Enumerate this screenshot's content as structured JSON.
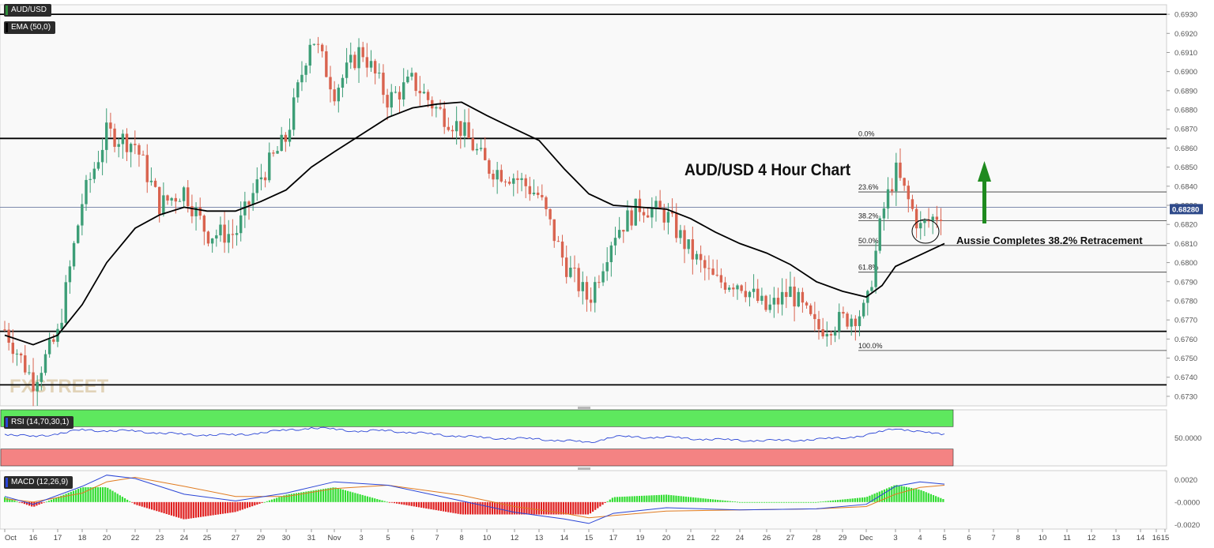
{
  "panels": {
    "symbol": "AUD/USD",
    "ema_label": "EMA (50,0)",
    "rsi_label": "RSI (14,70,30,1)",
    "macd_label": "MACD (12,26,9)"
  },
  "watermark": "FXSTREET",
  "chart_data": [
    {
      "type": "candlestick",
      "title": "AUD/USD 4 Hour Chart",
      "annotation": "Aussie Completes 38.2% Retracement",
      "ylim": [
        0.6725,
        0.6935
      ],
      "yticks": [
        "0.6930",
        "0.6920",
        "0.6910",
        "0.6900",
        "0.6890",
        "0.6880",
        "0.6870",
        "0.6860",
        "0.6850",
        "0.6840",
        "0.6830",
        "0.6820",
        "0.6810",
        "0.6800",
        "0.6790",
        "0.6780",
        "0.6770",
        "0.6760",
        "0.6750",
        "0.6740",
        "0.6730"
      ],
      "last_price": "0.68280",
      "x_labels": [
        "Oct",
        "16",
        "17",
        "18",
        "20",
        "22",
        "23",
        "24",
        "25",
        "27",
        "29",
        "30",
        "31",
        "Nov",
        "3",
        "5",
        "6",
        "7",
        "8",
        "10",
        "12",
        "13",
        "14",
        "15",
        "17",
        "19",
        "20",
        "21",
        "22",
        "24",
        "26",
        "27",
        "28",
        "29",
        "Dec",
        "3",
        "4",
        "5",
        "6",
        "7",
        "8",
        "10",
        "11",
        "12",
        "13",
        "14",
        "15",
        "16"
      ],
      "path_key": [
        {
          "date": "Oct 15",
          "price": 0.6765
        },
        {
          "date": "Oct 16",
          "price": 0.6738
        },
        {
          "date": "Oct 17",
          "price": 0.6762
        },
        {
          "date": "Oct 18",
          "price": 0.6832
        },
        {
          "date": "Oct 20",
          "price": 0.6868
        },
        {
          "date": "Oct 22",
          "price": 0.6862
        },
        {
          "date": "Oct 23",
          "price": 0.683
        },
        {
          "date": "Oct 24",
          "price": 0.6838
        },
        {
          "date": "Oct 25",
          "price": 0.6815
        },
        {
          "date": "Oct 27",
          "price": 0.6815
        },
        {
          "date": "Oct 29",
          "price": 0.6845
        },
        {
          "date": "Oct 30",
          "price": 0.6865
        },
        {
          "date": "Oct 31",
          "price": 0.692
        },
        {
          "date": "Nov 1",
          "price": 0.689
        },
        {
          "date": "Nov 3",
          "price": 0.6912
        },
        {
          "date": "Nov 5",
          "price": 0.6885
        },
        {
          "date": "Nov 6",
          "price": 0.6895
        },
        {
          "date": "Nov 7",
          "price": 0.688
        },
        {
          "date": "Nov 8",
          "price": 0.687
        },
        {
          "date": "Nov 10",
          "price": 0.685
        },
        {
          "date": "Nov 12",
          "price": 0.6845
        },
        {
          "date": "Nov 13",
          "price": 0.6835
        },
        {
          "date": "Nov 14",
          "price": 0.68
        },
        {
          "date": "Nov 15",
          "price": 0.678
        },
        {
          "date": "Nov 17",
          "price": 0.6815
        },
        {
          "date": "Nov 19",
          "price": 0.683
        },
        {
          "date": "Nov 20",
          "price": 0.6825
        },
        {
          "date": "Nov 21",
          "price": 0.6805
        },
        {
          "date": "Nov 22",
          "price": 0.679
        },
        {
          "date": "Nov 24",
          "price": 0.679
        },
        {
          "date": "Nov 26",
          "price": 0.6775
        },
        {
          "date": "Nov 27",
          "price": 0.6785
        },
        {
          "date": "Nov 28",
          "price": 0.6765
        },
        {
          "date": "Nov 29",
          "price": 0.677
        },
        {
          "date": "Dec 1",
          "price": 0.6775
        },
        {
          "date": "Dec 2",
          "price": 0.6825
        },
        {
          "date": "Dec 3",
          "price": 0.6848
        },
        {
          "date": "Dec 4",
          "price": 0.6818
        },
        {
          "date": "Dec 5",
          "price": 0.6828
        }
      ],
      "ema_path": [
        {
          "date": "Oct 15",
          "value": 0.6762
        },
        {
          "date": "Oct 16",
          "value": 0.6757
        },
        {
          "date": "Oct 17",
          "value": 0.6762
        },
        {
          "date": "Oct 18",
          "value": 0.6778
        },
        {
          "date": "Oct 20",
          "value": 0.68
        },
        {
          "date": "Oct 22",
          "value": 0.6818
        },
        {
          "date": "Oct 23",
          "value": 0.6825
        },
        {
          "date": "Oct 24",
          "value": 0.6829
        },
        {
          "date": "Oct 25",
          "value": 0.6827
        },
        {
          "date": "Oct 27",
          "value": 0.6827
        },
        {
          "date": "Oct 29",
          "value": 0.6832
        },
        {
          "date": "Oct 30",
          "value": 0.6838
        },
        {
          "date": "Oct 31",
          "value": 0.685
        },
        {
          "date": "Nov 1",
          "value": 0.6858
        },
        {
          "date": "Nov 3",
          "value": 0.6867
        },
        {
          "date": "Nov 5",
          "value": 0.6876
        },
        {
          "date": "Nov 6",
          "value": 0.6881
        },
        {
          "date": "Nov 7",
          "value": 0.6883
        },
        {
          "date": "Nov 8",
          "value": 0.6884
        },
        {
          "date": "Nov 10",
          "value": 0.6877
        },
        {
          "date": "Nov 12",
          "value": 0.687
        },
        {
          "date": "Nov 13",
          "value": 0.6864
        },
        {
          "date": "Nov 14",
          "value": 0.6849
        },
        {
          "date": "Nov 15",
          "value": 0.6836
        },
        {
          "date": "Nov 17",
          "value": 0.683
        },
        {
          "date": "Nov 19",
          "value": 0.6829
        },
        {
          "date": "Nov 20",
          "value": 0.6828
        },
        {
          "date": "Nov 21",
          "value": 0.6823
        },
        {
          "date": "Nov 22",
          "value": 0.6816
        },
        {
          "date": "Nov 24",
          "value": 0.681
        },
        {
          "date": "Nov 26",
          "value": 0.6805
        },
        {
          "date": "Nov 27",
          "value": 0.6799
        },
        {
          "date": "Nov 28",
          "value": 0.679
        },
        {
          "date": "Nov 29",
          "value": 0.6785
        },
        {
          "date": "Dec 1",
          "value": 0.6782
        },
        {
          "date": "Dec 2",
          "value": 0.6788
        },
        {
          "date": "Dec 3",
          "value": 0.6798
        },
        {
          "date": "Dec 4",
          "value": 0.6804
        },
        {
          "date": "Dec 5",
          "value": 0.681
        }
      ],
      "horizontal_levels": [
        0.693,
        0.6865,
        0.6829,
        0.6764,
        0.6736
      ],
      "fibonacci": [
        {
          "label": "0.0%",
          "price": 0.6865
        },
        {
          "label": "23.6%",
          "price": 0.6837
        },
        {
          "label": "38.2%",
          "price": 0.6822
        },
        {
          "label": "50.0%",
          "price": 0.6809
        },
        {
          "label": "61.8%",
          "price": 0.6795
        },
        {
          "label": "100.0%",
          "price": 0.6754
        }
      ]
    },
    {
      "type": "line",
      "indicator": "RSI",
      "ylim": [
        0,
        100
      ],
      "yticks": [
        "50.0000"
      ],
      "overbought": 70,
      "oversold": 30,
      "path_key": [
        {
          "date": "Oct 15",
          "value": 57
        },
        {
          "date": "Oct 16",
          "value": 52
        },
        {
          "date": "Oct 18",
          "value": 64
        },
        {
          "date": "Oct 22",
          "value": 62
        },
        {
          "date": "Oct 24",
          "value": 56
        },
        {
          "date": "Oct 27",
          "value": 55
        },
        {
          "date": "Oct 31",
          "value": 68
        },
        {
          "date": "Nov 3",
          "value": 62
        },
        {
          "date": "Nov 5",
          "value": 63
        },
        {
          "date": "Nov 7",
          "value": 56
        },
        {
          "date": "Nov 10",
          "value": 50
        },
        {
          "date": "Nov 13",
          "value": 48
        },
        {
          "date": "Nov 15",
          "value": 42
        },
        {
          "date": "Nov 17",
          "value": 52
        },
        {
          "date": "Nov 20",
          "value": 51
        },
        {
          "date": "Nov 22",
          "value": 47
        },
        {
          "date": "Nov 26",
          "value": 45
        },
        {
          "date": "Nov 28",
          "value": 47
        },
        {
          "date": "Dec 1",
          "value": 54
        },
        {
          "date": "Dec 3",
          "value": 68
        },
        {
          "date": "Dec 4",
          "value": 60
        },
        {
          "date": "Dec 5",
          "value": 57
        }
      ]
    },
    {
      "type": "bar",
      "indicator": "MACD",
      "ylim": [
        -0.0024,
        0.0028
      ],
      "yticks": [
        "0.0020",
        "-0.0000",
        "-0.0020"
      ],
      "macd_path": [
        {
          "date": "Oct 15",
          "value": 0.0005
        },
        {
          "date": "Oct 16",
          "value": -0.0002
        },
        {
          "date": "Oct 18",
          "value": 0.0014
        },
        {
          "date": "Oct 20",
          "value": 0.0024
        },
        {
          "date": "Oct 22",
          "value": 0.0021
        },
        {
          "date": "Oct 24",
          "value": 0.0007
        },
        {
          "date": "Oct 27",
          "value": 0.0001
        },
        {
          "date": "Oct 30",
          "value": 0.0008
        },
        {
          "date": "Nov 1",
          "value": 0.0018
        },
        {
          "date": "Nov 5",
          "value": 0.0015
        },
        {
          "date": "Nov 8",
          "value": 0.0001
        },
        {
          "date": "Nov 12",
          "value": -0.0009
        },
        {
          "date": "Nov 14",
          "value": -0.0015
        },
        {
          "date": "Nov 15",
          "value": -0.0019
        },
        {
          "date": "Nov 17",
          "value": -0.001
        },
        {
          "date": "Nov 20",
          "value": -0.0005
        },
        {
          "date": "Nov 24",
          "value": -0.0007
        },
        {
          "date": "Nov 28",
          "value": -0.0006
        },
        {
          "date": "Dec 1",
          "value": -0.0002
        },
        {
          "date": "Dec 3",
          "value": 0.0014
        },
        {
          "date": "Dec 4",
          "value": 0.0018
        },
        {
          "date": "Dec 5",
          "value": 0.0016
        }
      ],
      "signal_path": [
        {
          "date": "Oct 15",
          "value": 0.0003
        },
        {
          "date": "Oct 16",
          "value": 0.0
        },
        {
          "date": "Oct 18",
          "value": 0.0008
        },
        {
          "date": "Oct 20",
          "value": 0.0018
        },
        {
          "date": "Oct 22",
          "value": 0.0022
        },
        {
          "date": "Oct 24",
          "value": 0.0014
        },
        {
          "date": "Oct 27",
          "value": 0.0005
        },
        {
          "date": "Oct 30",
          "value": 0.0005
        },
        {
          "date": "Nov 1",
          "value": 0.0012
        },
        {
          "date": "Nov 5",
          "value": 0.0015
        },
        {
          "date": "Nov 8",
          "value": 0.0006
        },
        {
          "date": "Nov 12",
          "value": -0.0004
        },
        {
          "date": "Nov 14",
          "value": -0.001
        },
        {
          "date": "Nov 15",
          "value": -0.0014
        },
        {
          "date": "Nov 17",
          "value": -0.0012
        },
        {
          "date": "Nov 20",
          "value": -0.0008
        },
        {
          "date": "Nov 24",
          "value": -0.0007
        },
        {
          "date": "Nov 28",
          "value": -0.0006
        },
        {
          "date": "Dec 1",
          "value": -0.0004
        },
        {
          "date": "Dec 3",
          "value": 0.0007
        },
        {
          "date": "Dec 4",
          "value": 0.0013
        },
        {
          "date": "Dec 5",
          "value": 0.0015
        }
      ]
    }
  ],
  "colors": {
    "bull": "#3d9e77",
    "bear": "#d9634f",
    "ema": "#000000",
    "rsi_line": "#2a45d6",
    "macd_line": "#2a45d6",
    "signal_line": "#e07b20",
    "hist_pos": "#33dd33",
    "hist_neg": "#e02020",
    "overbought_zone": "#5ee85e",
    "oversold_zone": "#f48383",
    "last_price_tag": "#2f4a8a",
    "arrow": "#1e8a1e"
  }
}
